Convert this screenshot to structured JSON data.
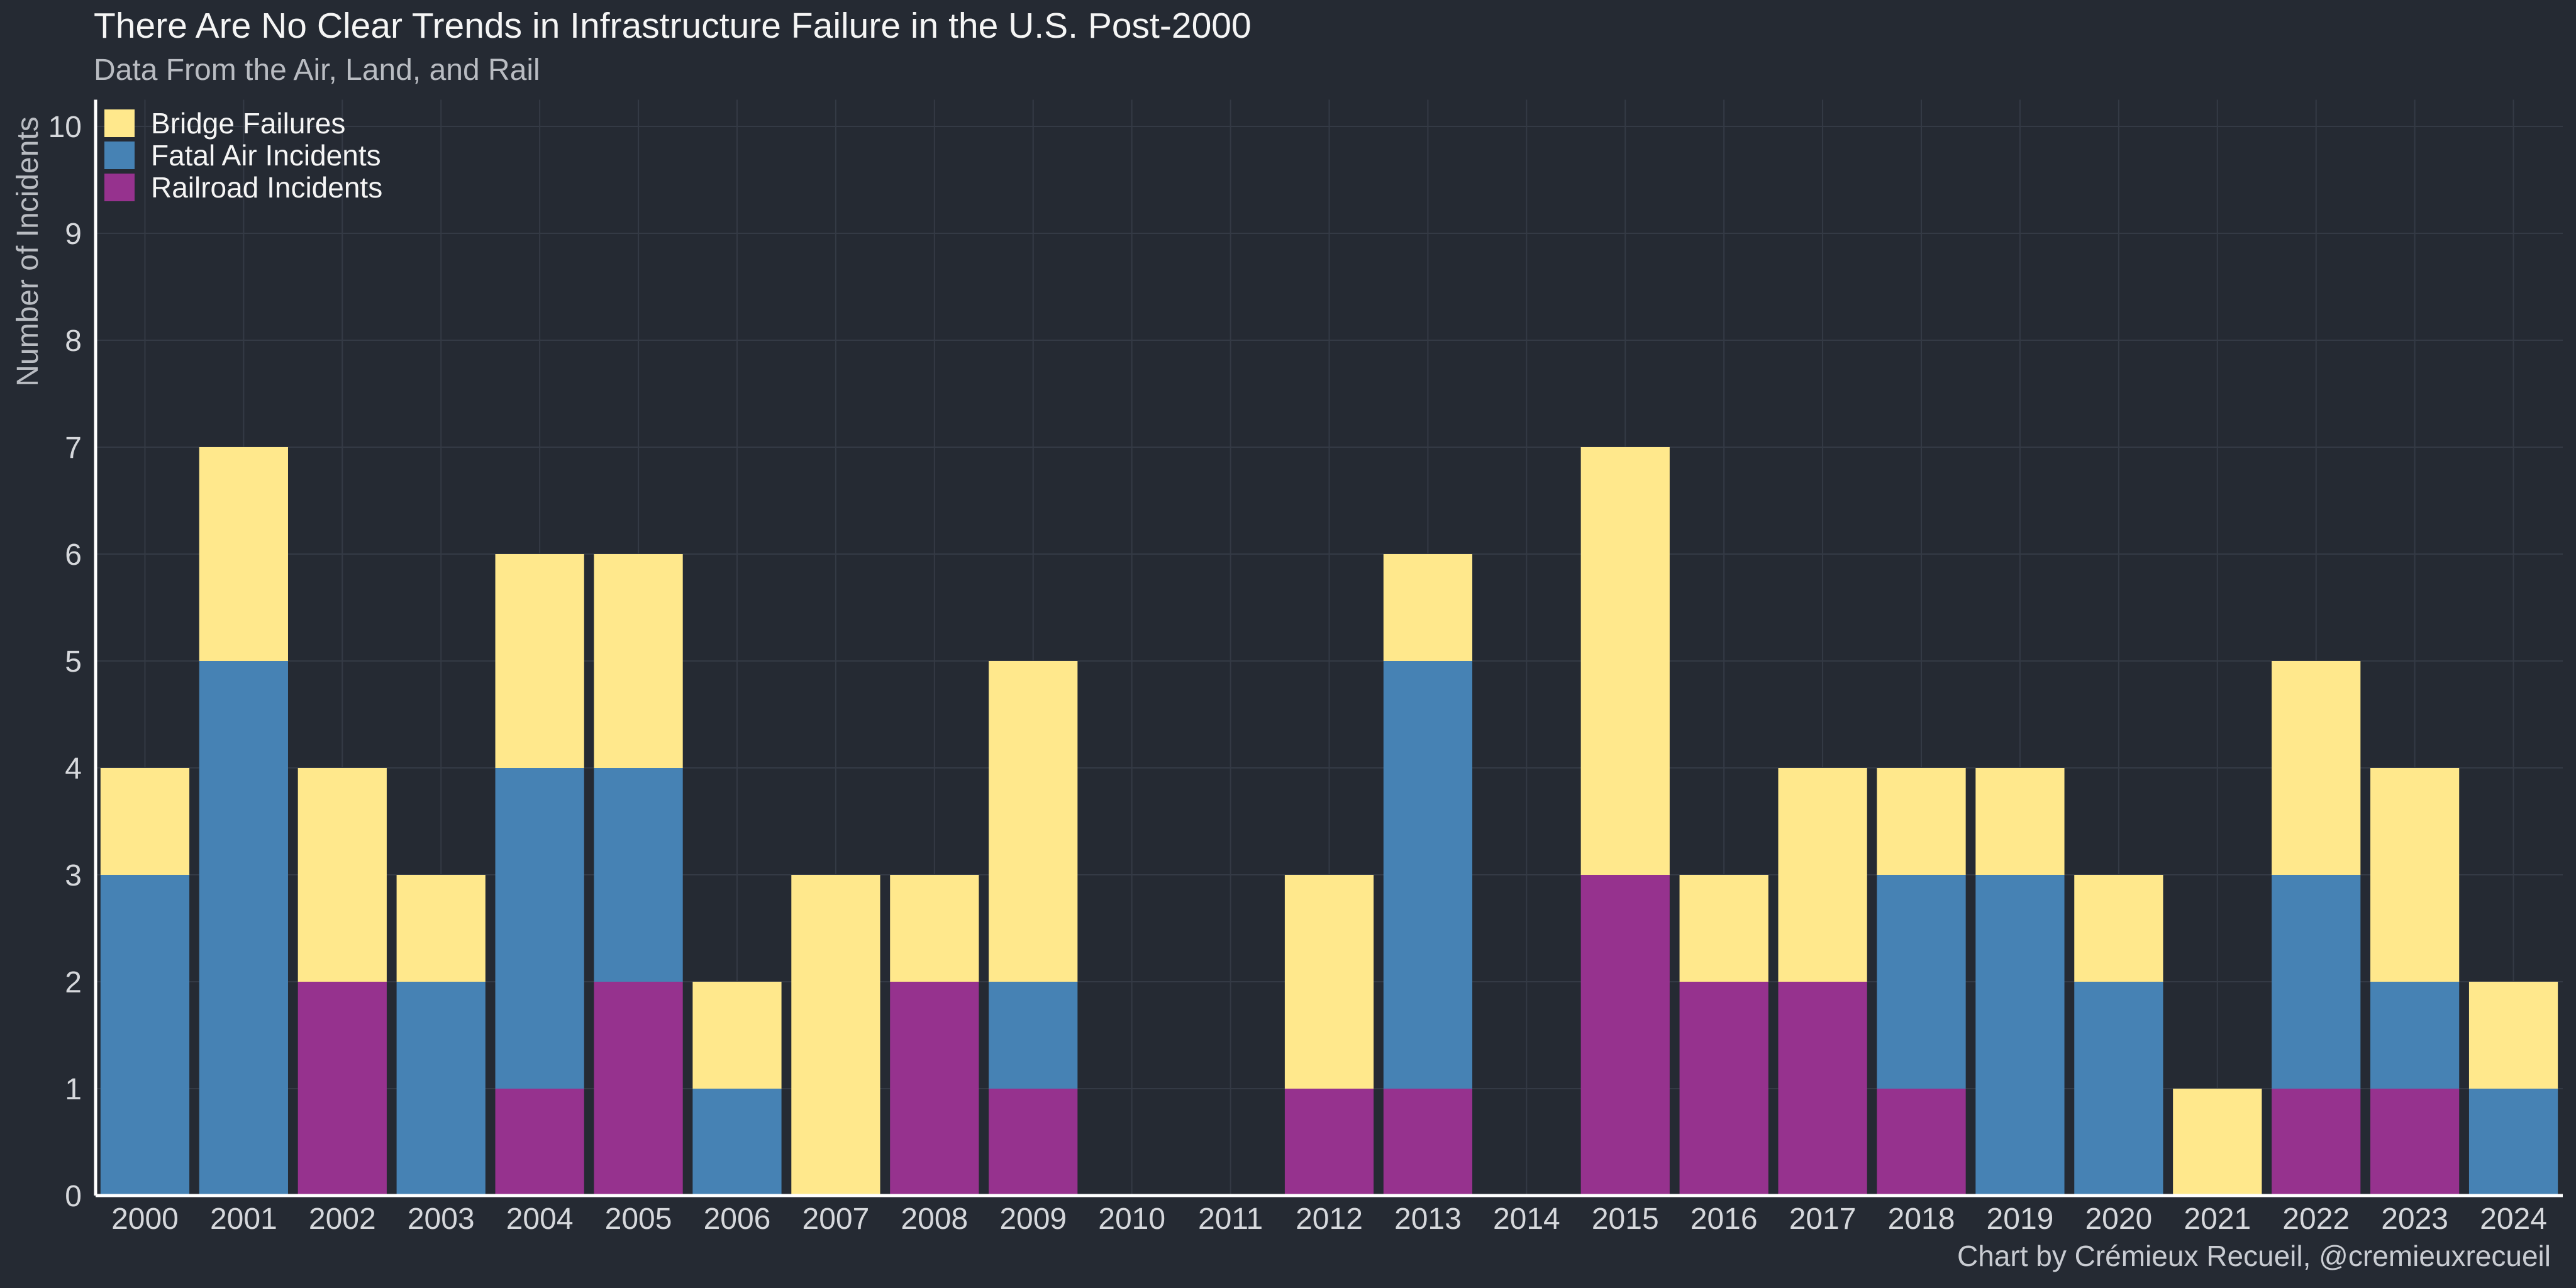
{
  "header": {
    "title": "There Are No Clear Trends in Infrastructure Failure in the U.S. Post-2000",
    "subtitle": "Data From the Air, Land, and Rail"
  },
  "footer": {
    "caption": "Chart by Crémieux Recueil, @cremieuxrecueil"
  },
  "colors": {
    "background": "#252a33",
    "grid": "#343a45",
    "axis": "#ffffff",
    "tick_text": "#d6d8dc",
    "bridge": "#ffe88c",
    "air": "#4682b4",
    "rail": "#96328e"
  },
  "chart_data": {
    "type": "bar",
    "stacked": true,
    "title": "There Are No Clear Trends in Infrastructure Failure in the U.S. Post-2000",
    "subtitle": "Data From the Air, Land, and Rail",
    "xlabel": "",
    "ylabel": "Number of Incidents",
    "ylim": [
      0,
      10.25
    ],
    "yticks": [
      "0",
      "1",
      "2",
      "3",
      "4",
      "5",
      "6",
      "7",
      "8",
      "9",
      "10"
    ],
    "grid": true,
    "legend_position": "top-left",
    "categories": [
      "2000",
      "2001",
      "2002",
      "2003",
      "2004",
      "2005",
      "2006",
      "2007",
      "2008",
      "2009",
      "2010",
      "2011",
      "2012",
      "2013",
      "2014",
      "2015",
      "2016",
      "2017",
      "2018",
      "2019",
      "2020",
      "2021",
      "2022",
      "2023",
      "2024"
    ],
    "series": [
      {
        "name": "Railroad Incidents",
        "color": "#96328e",
        "values": [
          0,
          0,
          2,
          0,
          1,
          2,
          0,
          0,
          2,
          1,
          0,
          0,
          1,
          1,
          0,
          3,
          2,
          2,
          1,
          0,
          0,
          0,
          1,
          1,
          0
        ]
      },
      {
        "name": "Fatal Air Incidents",
        "color": "#4682b4",
        "values": [
          3,
          5,
          0,
          2,
          3,
          2,
          1,
          0,
          0,
          1,
          0,
          0,
          0,
          4,
          0,
          0,
          0,
          0,
          2,
          3,
          2,
          0,
          2,
          1,
          1
        ]
      },
      {
        "name": "Bridge Failures",
        "color": "#ffe88c",
        "values": [
          1,
          2,
          2,
          1,
          2,
          2,
          1,
          3,
          1,
          3,
          0,
          0,
          2,
          1,
          0,
          4,
          1,
          2,
          1,
          1,
          1,
          1,
          2,
          2,
          1
        ]
      }
    ],
    "legend": [
      {
        "name": "Bridge Failures",
        "color": "#ffe88c"
      },
      {
        "name": "Fatal Air Incidents",
        "color": "#4682b4"
      },
      {
        "name": "Railroad Incidents",
        "color": "#96328e"
      }
    ]
  }
}
